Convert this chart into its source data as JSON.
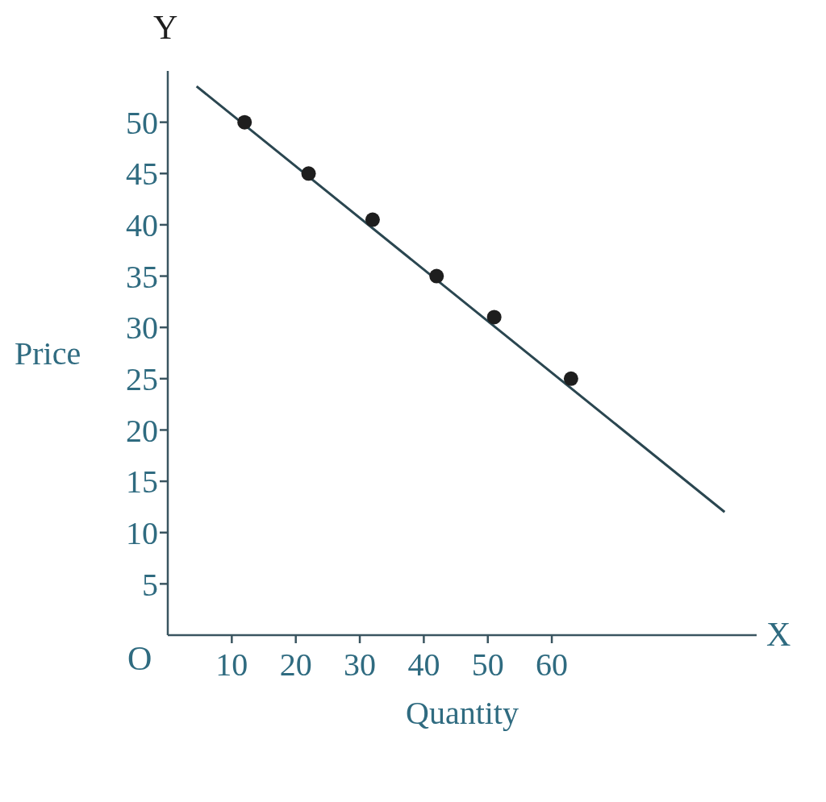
{
  "chart_data": {
    "type": "scatter",
    "xlabel": "Quantity",
    "ylabel": "Price",
    "annotations": [
      "Y",
      "X",
      "O"
    ],
    "series": [
      {
        "color": "#1e1e1e",
        "x": [
          12,
          22,
          32,
          42,
          51,
          63
        ],
        "values": [
          50,
          45,
          40.5,
          35,
          31,
          25
        ],
        "marker": "circle"
      },
      {
        "type": "line",
        "color": "#2a4650",
        "x": [
          4.5,
          87
        ],
        "values": [
          53.5,
          12
        ],
        "marker": "none"
      }
    ],
    "xlim": [
      0,
      92
    ],
    "ylim": [
      0,
      55
    ],
    "xticks": [
      10,
      20,
      30,
      40,
      50,
      60
    ],
    "yticks": [
      5,
      10,
      15,
      20,
      25,
      30,
      35,
      40,
      45,
      50
    ],
    "grid": false,
    "legend": false
  }
}
